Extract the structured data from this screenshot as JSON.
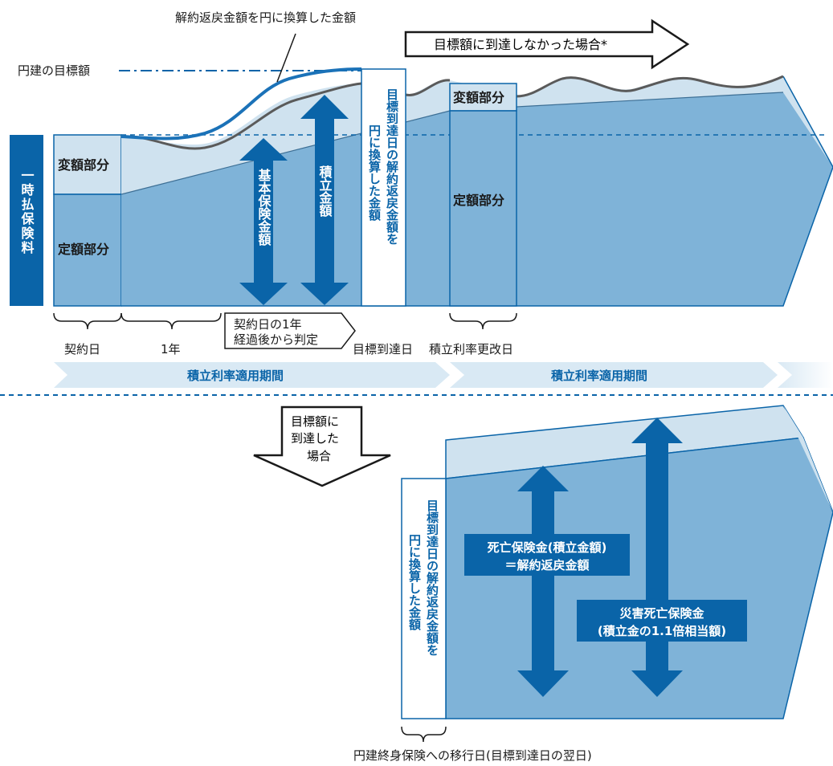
{
  "top": {
    "annotation_conversion": "解約返戻金額を円に換算した金額",
    "target_line_label": "円建の目標額",
    "not_reached_arrow": "目標額に到達しなかった場合*",
    "lump_sum_premium": "一時払保険料",
    "variable_part": "変額部分",
    "fixed_part": "定額部分",
    "basic_insured_amount": "基本保険金額",
    "accumulated_amount": "積立金額",
    "vertical_box_line1": "目標到達日の解約返戻金額を",
    "vertical_box_line2": "円に換算した金額",
    "variable_part_2": "変額部分",
    "fixed_part_2": "定額部分"
  },
  "timeline": {
    "contract_date": "契約日",
    "one_year": "1年",
    "judgement_line1": "契約日の1年",
    "judgement_line2": "経過後から判定",
    "target_reach_date": "目標到達日",
    "rate_revision_date": "積立利率更改日",
    "period_1": "積立利率適用期間",
    "period_2": "積立利率適用期間"
  },
  "bottom": {
    "reached_arrow_line1": "目標額に",
    "reached_arrow_line2": "到達した",
    "reached_arrow_line3": "場合",
    "vertical_box_line1": "目標到達日の解約返戻金額を",
    "vertical_box_line2": "円に換算した金額",
    "death_benefit_line1": "死亡保険金(積立金額)",
    "death_benefit_line2": "＝解約返戻金額",
    "disaster_benefit_line1": "災害死亡保険金",
    "disaster_benefit_line2": "(積立金の1.1倍相当額)",
    "transition_date": "円建終身保険への移行日(目標到達日の翌日)"
  },
  "colors": {
    "light_fill": "#cfe2ef",
    "mid_fill": "#7fb3d8",
    "dark_blue": "#0a64a8",
    "curve_blue": "#1b72b8",
    "curve_gray": "#5a5a5a",
    "band_fill": "#d9e9f4"
  }
}
